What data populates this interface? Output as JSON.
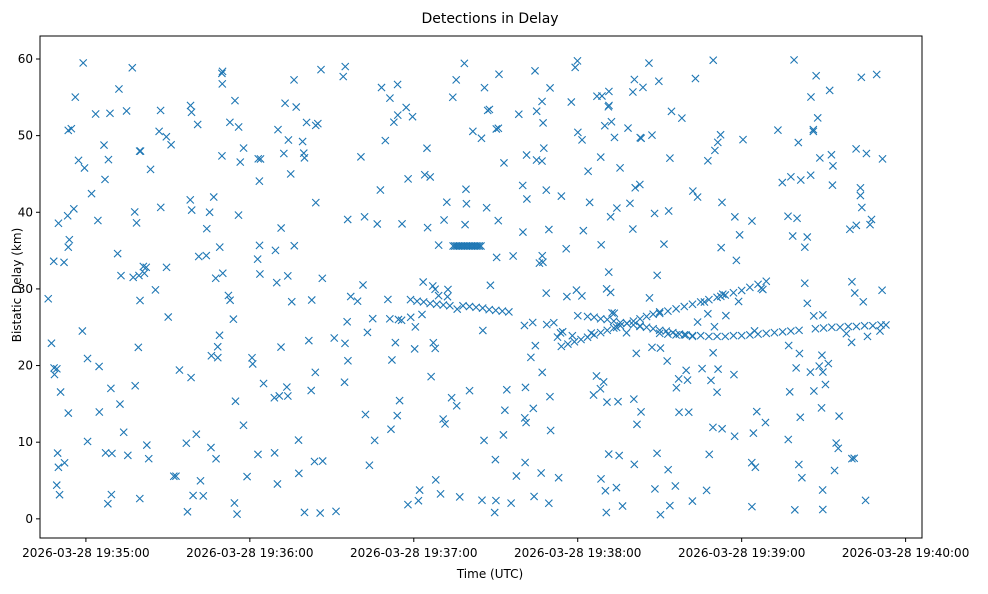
{
  "chart_data": {
    "type": "scatter",
    "title": "Detections in Delay",
    "xlabel": "Time (UTC)",
    "ylabel": "Bistatic Delay (km)",
    "marker": "x",
    "color": "#1f77b4",
    "x_unit": "minutes after 2026-03-28 19:35:00",
    "xlim": [
      -0.28,
      5.1
    ],
    "ylim": [
      -2.5,
      63
    ],
    "x_ticks": [
      {
        "value": 0,
        "label": "2026-03-28 19:35:00"
      },
      {
        "value": 1,
        "label": "2026-03-28 19:36:00"
      },
      {
        "value": 2,
        "label": "2026-03-28 19:37:00"
      },
      {
        "value": 3,
        "label": "2026-03-28 19:38:00"
      },
      {
        "value": 4,
        "label": "2026-03-28 19:39:00"
      },
      {
        "value": 5,
        "label": "2026-03-28 19:40:00"
      }
    ],
    "y_ticks": [
      {
        "value": 0,
        "label": "0"
      },
      {
        "value": 10,
        "label": "10"
      },
      {
        "value": 20,
        "label": "20"
      },
      {
        "value": 30,
        "label": "30"
      },
      {
        "value": 40,
        "label": "40"
      },
      {
        "value": 50,
        "label": "50"
      },
      {
        "value": 60,
        "label": "60"
      }
    ],
    "scatter_x_range": [
      -0.24,
      4.88
    ],
    "scatter_y_range": [
      0.5,
      60
    ],
    "scatter_count": 520,
    "tracks": [
      {
        "name": "flat-35.5",
        "x": [
          2.24,
          2.25,
          2.26,
          2.27,
          2.28,
          2.29,
          2.3,
          2.31,
          2.32,
          2.33,
          2.34,
          2.35,
          2.36,
          2.37,
          2.38,
          2.39,
          2.4,
          2.41
        ],
        "y": [
          35.6,
          35.6,
          35.6,
          35.6,
          35.6,
          35.6,
          35.6,
          35.6,
          35.6,
          35.6,
          35.6,
          35.6,
          35.6,
          35.6,
          35.6,
          35.6,
          35.6,
          35.6
        ]
      },
      {
        "name": "descending-28",
        "x": [
          1.98,
          2.02,
          2.06,
          2.1,
          2.14,
          2.18,
          2.22,
          2.3,
          2.34,
          2.38,
          2.42,
          2.46,
          2.5,
          2.54,
          2.58
        ],
        "y": [
          28.6,
          28.4,
          28.3,
          28.1,
          28.0,
          27.9,
          27.8,
          27.8,
          27.7,
          27.6,
          27.5,
          27.3,
          27.2,
          27.1,
          27.0
        ]
      },
      {
        "name": "cluster-24-rising",
        "x": [
          2.9,
          2.94,
          2.98,
          3.02,
          3.06,
          3.1,
          3.14,
          3.18,
          3.22,
          3.26,
          3.3,
          3.34,
          3.38,
          3.42,
          3.46,
          3.5
        ],
        "y": [
          22.5,
          22.8,
          23.1,
          23.4,
          23.7,
          24.0,
          24.3,
          24.6,
          24.9,
          25.2,
          25.5,
          25.8,
          26.1,
          26.4,
          26.7,
          27.0
        ]
      },
      {
        "name": "cluster-26-descending",
        "x": [
          3.06,
          3.1,
          3.14,
          3.18,
          3.22,
          3.26,
          3.3,
          3.34,
          3.38,
          3.42,
          3.46,
          3.5,
          3.54,
          3.58,
          3.62,
          3.66,
          3.7
        ],
        "y": [
          26.4,
          26.3,
          26.1,
          26.0,
          25.8,
          25.6,
          25.5,
          25.3,
          25.1,
          25.0,
          24.8,
          24.6,
          24.5,
          24.3,
          24.1,
          24.0,
          23.8
        ]
      },
      {
        "name": "rising-31",
        "x": [
          3.5,
          3.55,
          3.6,
          3.65,
          3.7,
          3.75,
          3.8,
          3.85,
          3.9,
          3.95,
          4.0,
          4.05,
          4.1,
          4.15
        ],
        "y": [
          26.8,
          27.1,
          27.4,
          27.7,
          28.0,
          28.3,
          28.6,
          28.9,
          29.2,
          29.5,
          29.8,
          30.2,
          30.6,
          31.0
        ]
      },
      {
        "name": "flat-24",
        "x": [
          3.5,
          3.55,
          3.6,
          3.65,
          3.7,
          3.75,
          3.8,
          3.85,
          3.9,
          3.95,
          4.0,
          4.05,
          4.1,
          4.15,
          4.2,
          4.25,
          4.3,
          4.35
        ],
        "y": [
          24.2,
          24.1,
          24.0,
          24.0,
          23.9,
          23.9,
          23.8,
          23.8,
          23.8,
          23.9,
          23.9,
          24.0,
          24.1,
          24.2,
          24.3,
          24.4,
          24.5,
          24.6
        ]
      },
      {
        "name": "flat-25",
        "x": [
          4.45,
          4.5,
          4.55,
          4.6,
          4.65,
          4.7,
          4.75,
          4.8,
          4.85,
          4.88
        ],
        "y": [
          24.8,
          24.9,
          25.0,
          25.0,
          25.1,
          25.1,
          25.2,
          25.2,
          25.3,
          25.3
        ]
      }
    ]
  }
}
